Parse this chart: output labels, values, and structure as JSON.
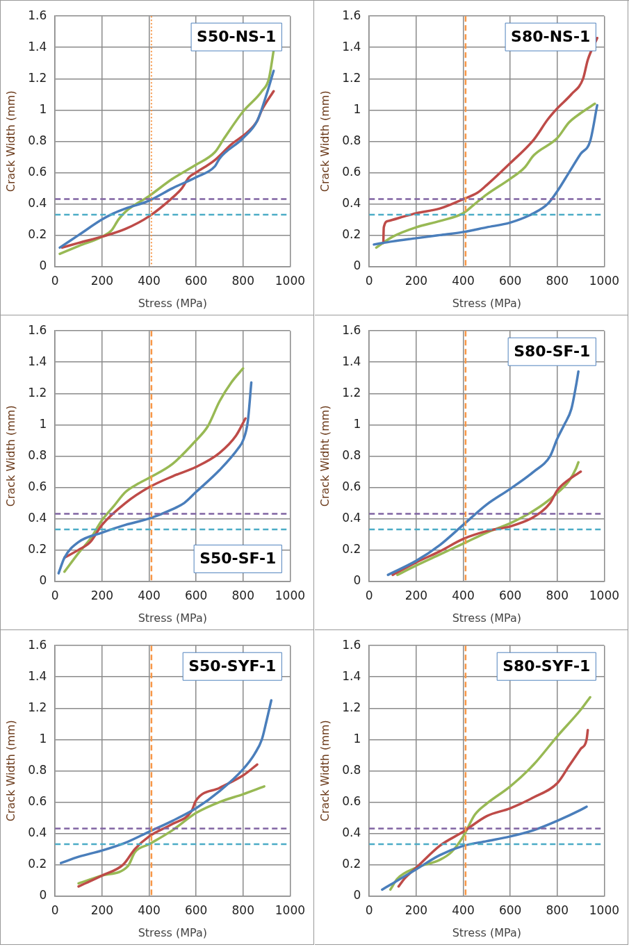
{
  "chart_data": [
    {
      "type": "line",
      "title": "S50-NS-1",
      "xlabel": "Stress (MPa)",
      "ylabel": "Crack Width (mm)",
      "xlim": [
        0,
        1000
      ],
      "xticks": [
        0,
        200,
        400,
        600,
        800,
        1000
      ],
      "ylim": [
        0,
        1.6
      ],
      "yticks": [
        0,
        0.2,
        0.4,
        0.6,
        0.8,
        1,
        1.2,
        1.4,
        1.6
      ],
      "grid": true,
      "legend": false,
      "marker": "none",
      "line_style": "solid",
      "ref_lines": [
        {
          "axis": "y",
          "value": 0.43,
          "color": "#8064a2",
          "line_style": "dashed"
        },
        {
          "axis": "y",
          "value": 0.33,
          "color": "#4bacc6",
          "line_style": "dashed"
        },
        {
          "axis": "x",
          "value": 410,
          "color": "#f79646",
          "line_style": "dotted"
        }
      ],
      "series": [
        {
          "color": "#4a7ebb",
          "x": [
            20,
            100,
            200,
            250,
            300,
            400,
            500,
            600,
            680,
            700,
            800,
            860,
            900,
            930
          ],
          "values": [
            0.12,
            0.2,
            0.3,
            0.34,
            0.37,
            0.42,
            0.5,
            0.57,
            0.64,
            0.69,
            0.82,
            0.93,
            1.1,
            1.25
          ]
        },
        {
          "color": "#be4b48",
          "x": [
            30,
            100,
            200,
            300,
            400,
            500,
            540,
            570,
            600,
            680,
            750,
            820,
            860,
            880,
            930
          ],
          "values": [
            0.12,
            0.15,
            0.19,
            0.24,
            0.32,
            0.44,
            0.5,
            0.57,
            0.6,
            0.68,
            0.78,
            0.86,
            0.93,
            1.0,
            1.12
          ]
        },
        {
          "color": "#98b954",
          "x": [
            20,
            100,
            200,
            240,
            270,
            300,
            400,
            500,
            600,
            680,
            720,
            800,
            880,
            910,
            930
          ],
          "values": [
            0.08,
            0.13,
            0.19,
            0.23,
            0.3,
            0.35,
            0.45,
            0.56,
            0.65,
            0.73,
            0.82,
            0.99,
            1.12,
            1.2,
            1.38
          ]
        }
      ]
    },
    {
      "type": "line",
      "title": "S80-NS-1",
      "xlabel": "Stress (MPa)",
      "ylabel": "Crack Width (mm)",
      "xlim": [
        0,
        1000
      ],
      "xticks": [
        0,
        200,
        400,
        600,
        800,
        1000
      ],
      "ylim": [
        0,
        1.6
      ],
      "yticks": [
        0,
        0.2,
        0.4,
        0.6,
        0.8,
        1,
        1.2,
        1.4,
        1.6
      ],
      "grid": true,
      "legend": false,
      "marker": "none",
      "line_style": "solid",
      "ref_lines": [
        {
          "axis": "y",
          "value": 0.43,
          "color": "#8064a2",
          "line_style": "dashed"
        },
        {
          "axis": "y",
          "value": 0.33,
          "color": "#4bacc6",
          "line_style": "dashed"
        },
        {
          "axis": "x",
          "value": 410,
          "color": "#f79646",
          "line_style": "dashed"
        }
      ],
      "series": [
        {
          "color": "#4a7ebb",
          "x": [
            20,
            100,
            200,
            300,
            400,
            500,
            600,
            700,
            760,
            800,
            850,
            900,
            940,
            970
          ],
          "values": [
            0.14,
            0.16,
            0.18,
            0.2,
            0.22,
            0.25,
            0.28,
            0.34,
            0.4,
            0.48,
            0.6,
            0.72,
            0.8,
            1.03
          ]
        },
        {
          "color": "#be4b48",
          "x": [
            60,
            62,
            80,
            150,
            200,
            300,
            400,
            460,
            500,
            600,
            700,
            760,
            800,
            860,
            910,
            930,
            970
          ],
          "values": [
            0.15,
            0.25,
            0.29,
            0.32,
            0.34,
            0.37,
            0.43,
            0.47,
            0.52,
            0.66,
            0.81,
            0.94,
            1.01,
            1.1,
            1.2,
            1.32,
            1.46
          ]
        },
        {
          "color": "#98b954",
          "x": [
            30,
            100,
            200,
            300,
            400,
            450,
            500,
            600,
            660,
            700,
            800,
            850,
            900,
            960
          ],
          "values": [
            0.12,
            0.19,
            0.25,
            0.29,
            0.34,
            0.4,
            0.46,
            0.56,
            0.63,
            0.71,
            0.82,
            0.92,
            0.98,
            1.04
          ]
        }
      ]
    },
    {
      "type": "line",
      "title": "S50-SF-1",
      "xlabel": "Stress (MPa)",
      "ylabel": "Crack Width (mm)",
      "xlim": [
        0,
        1000
      ],
      "xticks": [
        0,
        200,
        400,
        600,
        800,
        1000
      ],
      "ylim": [
        0,
        1.6
      ],
      "yticks": [
        0,
        0.2,
        0.4,
        0.6,
        0.8,
        1,
        1.2,
        1.4,
        1.6
      ],
      "grid": true,
      "legend": false,
      "marker": "none",
      "line_style": "solid",
      "ref_lines": [
        {
          "axis": "y",
          "value": 0.43,
          "color": "#8064a2",
          "line_style": "dashed"
        },
        {
          "axis": "y",
          "value": 0.33,
          "color": "#4bacc6",
          "line_style": "dashed"
        },
        {
          "axis": "x",
          "value": 410,
          "color": "#f79646",
          "line_style": "dashed"
        }
      ],
      "series": [
        {
          "color": "#4a7ebb",
          "x": [
            15,
            40,
            100,
            200,
            300,
            400,
            500,
            550,
            600,
            700,
            780,
            800,
            820,
            835
          ],
          "values": [
            0.05,
            0.15,
            0.25,
            0.31,
            0.36,
            0.4,
            0.46,
            0.5,
            0.57,
            0.71,
            0.85,
            0.9,
            1.02,
            1.27
          ]
        },
        {
          "color": "#be4b48",
          "x": [
            40,
            100,
            150,
            200,
            300,
            400,
            500,
            600,
            700,
            770,
            810
          ],
          "values": [
            0.15,
            0.2,
            0.25,
            0.36,
            0.5,
            0.6,
            0.67,
            0.73,
            0.82,
            0.93,
            1.04
          ]
        },
        {
          "color": "#98b954",
          "x": [
            40,
            100,
            150,
            200,
            250,
            300,
            350,
            400,
            500,
            600,
            650,
            700,
            750,
            800
          ],
          "values": [
            0.06,
            0.18,
            0.27,
            0.39,
            0.48,
            0.57,
            0.62,
            0.66,
            0.75,
            0.9,
            0.99,
            1.15,
            1.27,
            1.36
          ]
        }
      ]
    },
    {
      "type": "line",
      "title": "S80-SF-1",
      "xlabel": "Stress (MPa)",
      "ylabel": "Crack Widht (mm)",
      "xlim": [
        0,
        1000
      ],
      "xticks": [
        0,
        200,
        400,
        600,
        800,
        1000
      ],
      "ylim": [
        0,
        1.6
      ],
      "yticks": [
        0,
        0.2,
        0.4,
        0.6,
        0.8,
        1,
        1.2,
        1.4,
        1.6
      ],
      "grid": true,
      "legend": false,
      "marker": "none",
      "line_style": "solid",
      "ref_lines": [
        {
          "axis": "y",
          "value": 0.43,
          "color": "#8064a2",
          "line_style": "dashed"
        },
        {
          "axis": "y",
          "value": 0.33,
          "color": "#4bacc6",
          "line_style": "dashed"
        },
        {
          "axis": "x",
          "value": 410,
          "color": "#f79646",
          "line_style": "dashed"
        }
      ],
      "series": [
        {
          "color": "#4a7ebb",
          "x": [
            80,
            200,
            300,
            400,
            500,
            600,
            700,
            770,
            800,
            830,
            860,
            880,
            890
          ],
          "values": [
            0.04,
            0.13,
            0.23,
            0.36,
            0.49,
            0.59,
            0.7,
            0.8,
            0.91,
            1.0,
            1.1,
            1.25,
            1.34
          ]
        },
        {
          "color": "#be4b48",
          "x": [
            100,
            200,
            300,
            400,
            500,
            600,
            700,
            770,
            800,
            850,
            900
          ],
          "values": [
            0.04,
            0.12,
            0.19,
            0.27,
            0.32,
            0.35,
            0.41,
            0.5,
            0.58,
            0.65,
            0.7
          ]
        },
        {
          "color": "#98b954",
          "x": [
            120,
            200,
            300,
            400,
            500,
            600,
            700,
            790,
            850,
            880,
            890
          ],
          "values": [
            0.04,
            0.1,
            0.17,
            0.24,
            0.31,
            0.37,
            0.45,
            0.55,
            0.64,
            0.72,
            0.76
          ]
        }
      ]
    },
    {
      "type": "line",
      "title": "S50-SYF-1",
      "xlabel": "Stress (MPa)",
      "ylabel": "Crack Width (mm)",
      "xlim": [
        0,
        1000
      ],
      "xticks": [
        0,
        200,
        400,
        600,
        800,
        1000
      ],
      "ylim": [
        0,
        1.6
      ],
      "yticks": [
        0,
        0.2,
        0.4,
        0.6,
        0.8,
        1,
        1.2,
        1.4,
        1.6
      ],
      "grid": true,
      "legend": false,
      "marker": "none",
      "line_style": "solid",
      "ref_lines": [
        {
          "axis": "y",
          "value": 0.43,
          "color": "#8064a2",
          "line_style": "dashed"
        },
        {
          "axis": "y",
          "value": 0.33,
          "color": "#4bacc6",
          "line_style": "dashed"
        },
        {
          "axis": "x",
          "value": 410,
          "color": "#f79646",
          "line_style": "dashed"
        }
      ],
      "series": [
        {
          "color": "#4a7ebb",
          "x": [
            25,
            100,
            200,
            300,
            400,
            500,
            600,
            700,
            800,
            850,
            880,
            900,
            920
          ],
          "values": [
            0.21,
            0.25,
            0.29,
            0.34,
            0.41,
            0.48,
            0.56,
            0.67,
            0.81,
            0.91,
            1.0,
            1.12,
            1.25
          ]
        },
        {
          "color": "#be4b48",
          "x": [
            100,
            200,
            290,
            340,
            400,
            500,
            580,
            600,
            700,
            800,
            860
          ],
          "values": [
            0.06,
            0.13,
            0.2,
            0.3,
            0.38,
            0.46,
            0.54,
            0.61,
            0.69,
            0.77,
            0.84
          ]
        },
        {
          "color": "#98b954",
          "x": [
            100,
            200,
            310,
            340,
            400,
            500,
            600,
            700,
            800,
            890
          ],
          "values": [
            0.08,
            0.13,
            0.19,
            0.28,
            0.33,
            0.42,
            0.53,
            0.6,
            0.65,
            0.7
          ]
        }
      ]
    },
    {
      "type": "line",
      "title": "S80-SYF-1",
      "xlabel": "Stress (MPa)",
      "ylabel": "Crack Width (mm)",
      "xlim": [
        0,
        1000
      ],
      "xticks": [
        0,
        200,
        400,
        600,
        800,
        1000
      ],
      "ylim": [
        0,
        1.6
      ],
      "yticks": [
        0,
        0.2,
        0.4,
        0.6,
        0.8,
        1,
        1.2,
        1.4,
        1.6
      ],
      "grid": true,
      "legend": false,
      "marker": "none",
      "line_style": "solid",
      "ref_lines": [
        {
          "axis": "y",
          "value": 0.43,
          "color": "#8064a2",
          "line_style": "dashed"
        },
        {
          "axis": "y",
          "value": 0.33,
          "color": "#4bacc6",
          "line_style": "dashed"
        },
        {
          "axis": "x",
          "value": 410,
          "color": "#f79646",
          "line_style": "dashed"
        }
      ],
      "series": [
        {
          "color": "#4a7ebb",
          "x": [
            55,
            100,
            200,
            300,
            400,
            500,
            600,
            700,
            800,
            900,
            925
          ],
          "values": [
            0.04,
            0.08,
            0.17,
            0.26,
            0.32,
            0.35,
            0.38,
            0.42,
            0.48,
            0.55,
            0.57
          ]
        },
        {
          "color": "#be4b48",
          "x": [
            125,
            150,
            200,
            300,
            400,
            500,
            600,
            700,
            800,
            850,
            900,
            925,
            930
          ],
          "values": [
            0.06,
            0.11,
            0.18,
            0.32,
            0.41,
            0.51,
            0.56,
            0.63,
            0.72,
            0.83,
            0.94,
            1.0,
            1.06
          ]
        },
        {
          "color": "#98b954",
          "x": [
            90,
            120,
            200,
            300,
            350,
            400,
            450,
            500,
            600,
            700,
            800,
            900,
            940
          ],
          "values": [
            0.04,
            0.11,
            0.18,
            0.23,
            0.28,
            0.38,
            0.52,
            0.59,
            0.7,
            0.84,
            1.02,
            1.19,
            1.27
          ]
        }
      ]
    }
  ]
}
